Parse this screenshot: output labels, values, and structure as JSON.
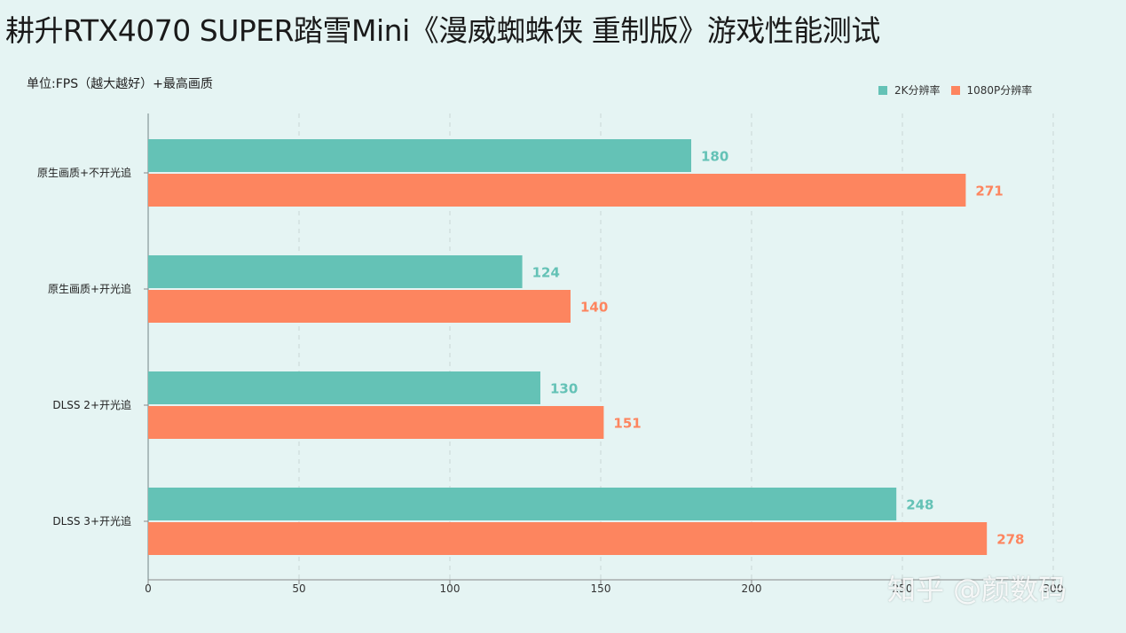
{
  "title": "耕升RTX4070 SUPER踏雪Mini《漫威蜘蛛侠 重制版》游戏性能测试",
  "subtitle": "单位:FPS（越大越好）+最高画质",
  "watermark": "知乎 @颜数码",
  "colors": {
    "series_2k": "#64c2b6",
    "series_1080p": "#fd855f",
    "background": "#e5f4f3"
  },
  "chart_data": {
    "type": "bar",
    "orientation": "horizontal",
    "categories": [
      "原生画质+不开光追",
      "原生画质+开光追",
      "DLSS 2+开光追",
      "DLSS 3+开光追"
    ],
    "series": [
      {
        "name": "2K分辨率",
        "values": [
          180,
          124,
          130,
          248
        ]
      },
      {
        "name": "1080P分辨率",
        "values": [
          271,
          140,
          151,
          278
        ]
      }
    ],
    "xlim": [
      0,
      300
    ],
    "xticks": [
      "0",
      "50",
      "100",
      "150",
      "200",
      "250",
      "300"
    ],
    "grid": true,
    "legend_position": "top-right",
    "data_labels": true
  }
}
